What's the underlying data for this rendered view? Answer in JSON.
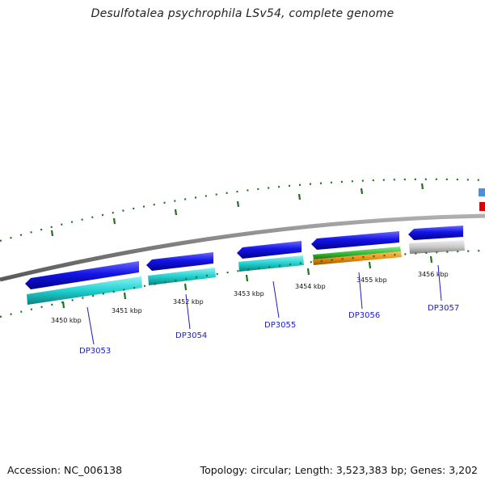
{
  "title": "Desulfotalea psychrophila LSv54, complete genome",
  "footer": {
    "accession": "Accession: NC_006138",
    "summary": "Topology: circular; Length: 3,523,383 bp; Genes: 3,202"
  },
  "scale_labels": [
    "3450 kbp",
    "3451 kbp",
    "3452 kbp",
    "3453 kbp",
    "3454 kbp",
    "3455 kbp",
    "3456 kbp"
  ],
  "gene_labels": [
    "DP3053",
    "DP3054",
    "DP3055",
    "DP3056",
    "DP3057"
  ],
  "colors": {
    "gene_arrow": "#1010e0",
    "cds_cyan": "#20d0d0",
    "cds_green": "#40c040",
    "cds_orange": "#f09010",
    "cds_gray": "#c8c8c8",
    "tick": "#207020",
    "backbone": "#808080",
    "feature_blue": "#4f8fd8",
    "feature_red": "#e00000",
    "label": "#1a1acc"
  }
}
